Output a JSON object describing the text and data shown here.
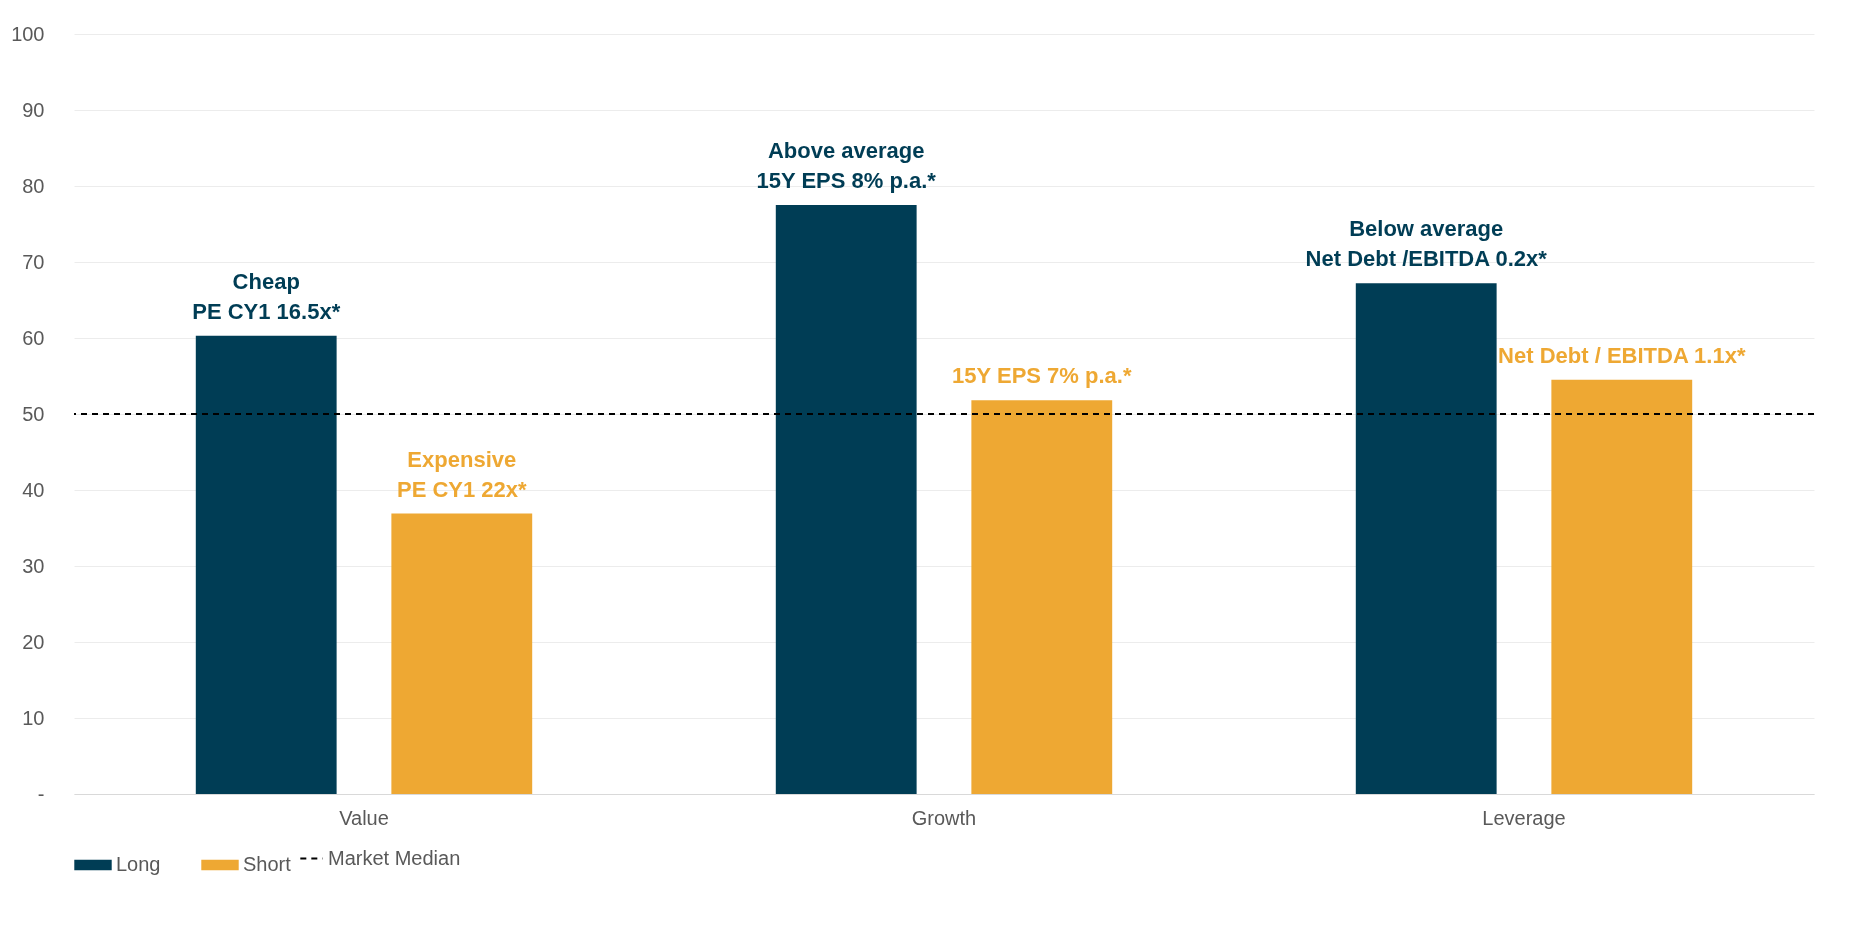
{
  "chart_data": {
    "type": "bar",
    "categories": [
      "Value",
      "Growth",
      "Leverage"
    ],
    "series": [
      {
        "name": "Long",
        "color": "#003d55",
        "values": [
          60.3,
          77.5,
          67.2
        ]
      },
      {
        "name": "Short",
        "color": "#eea833",
        "values": [
          36.9,
          51.8,
          54.5
        ]
      }
    ],
    "ylim": [
      0,
      100
    ],
    "yticks": [
      {
        "value": 0,
        "label": "-"
      },
      10,
      20,
      30,
      40,
      50,
      60,
      70,
      80,
      90,
      100
    ],
    "grid": "y",
    "legend": "bottom",
    "ref_lines": [
      {
        "axis": "y",
        "value": 50,
        "label": "Market Median",
        "color": "#000000",
        "line_style": "dashed"
      }
    ],
    "annotations": [
      "Cheap\nPE CY1 16.5x*",
      "Expensive\nPE CY1 22x*",
      "Above average\n15Y EPS 8% p.a.*",
      "15Y EPS 7% p.a.*",
      "Below average\nNet Debt /EBITDA 0.2x*",
      "Net Debt / EBITDA 1.1x*"
    ]
  }
}
